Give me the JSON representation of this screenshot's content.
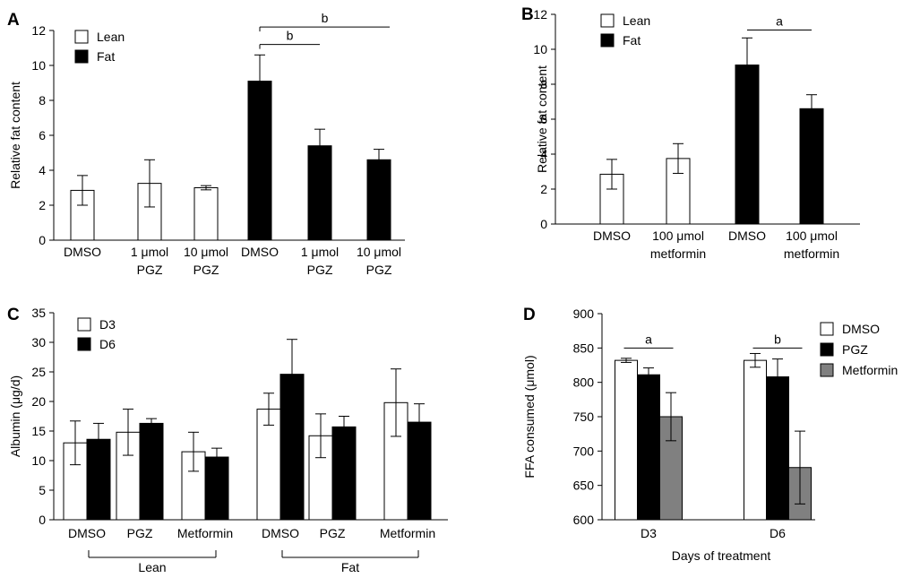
{
  "chart_data": [
    {
      "type": "bar",
      "panel": "A",
      "ylabel": "Relative fat content",
      "ylim": [
        0,
        12
      ],
      "yticks": [
        0,
        2,
        4,
        6,
        8,
        10,
        12
      ],
      "categories": [
        [
          "DMSO"
        ],
        [
          "1 μmol",
          "PGZ"
        ],
        [
          "10 μmol",
          "PGZ"
        ],
        [
          "DMSO"
        ],
        [
          "1 μmol",
          "PGZ"
        ],
        [
          "10 μmol",
          "PGZ"
        ]
      ],
      "bars": [
        {
          "value": 2.85,
          "error": 0.85,
          "series": "Lean"
        },
        {
          "value": 3.25,
          "error": 1.35,
          "series": "Lean"
        },
        {
          "value": 3.0,
          "error": 0.12,
          "series": "Lean"
        },
        {
          "value": 9.1,
          "error": 1.5,
          "series": "Fat"
        },
        {
          "value": 5.4,
          "error": 0.95,
          "series": "Fat"
        },
        {
          "value": 4.6,
          "error": 0.6,
          "series": "Fat"
        }
      ],
      "legend": [
        {
          "label": "Lean",
          "color": "#ffffff"
        },
        {
          "label": "Fat",
          "color": "#000000"
        }
      ],
      "significance": [
        {
          "label": "b",
          "from": 3,
          "to": 4,
          "y": 11.2
        },
        {
          "label": "b",
          "from": 3,
          "to": 5,
          "y": 12.2
        }
      ]
    },
    {
      "type": "bar",
      "panel": "B",
      "ylabel": "Relative fat content",
      "ylim": [
        0,
        12
      ],
      "yticks": [
        0,
        2,
        4,
        6,
        8,
        10,
        12
      ],
      "categories": [
        [
          "DMSO"
        ],
        [
          "100 μmol",
          "metformin"
        ],
        [
          "DMSO"
        ],
        [
          "100 μmol",
          "metformin"
        ]
      ],
      "bars": [
        {
          "value": 2.85,
          "error": 0.85,
          "series": "Lean"
        },
        {
          "value": 3.75,
          "error": 0.85,
          "series": "Lean"
        },
        {
          "value": 9.1,
          "error": 1.55,
          "series": "Fat"
        },
        {
          "value": 6.6,
          "error": 0.8,
          "series": "Fat"
        }
      ],
      "legend": [
        {
          "label": "Lean",
          "color": "#ffffff"
        },
        {
          "label": "Fat",
          "color": "#000000"
        }
      ],
      "significance": [
        {
          "label": "a",
          "from": 2,
          "to": 3,
          "y": 11.1
        }
      ]
    },
    {
      "type": "bar",
      "panel": "C",
      "ylabel": "Albumin (μg/d)",
      "ylim": [
        0,
        35
      ],
      "yticks": [
        0,
        5,
        10,
        15,
        20,
        25,
        30,
        35
      ],
      "categories": [
        "DMSO",
        "PGZ",
        "Metformin",
        "DMSO",
        "PGZ",
        "Metformin"
      ],
      "series": [
        {
          "name": "D3",
          "color": "#ffffff",
          "values": [
            13.0,
            14.8,
            11.5,
            18.7,
            14.2,
            19.8
          ],
          "errors": [
            3.7,
            3.9,
            3.3,
            2.7,
            3.7,
            5.7
          ]
        },
        {
          "name": "D6",
          "color": "#000000",
          "values": [
            13.6,
            16.3,
            10.6,
            24.6,
            15.7,
            16.5
          ],
          "errors": [
            2.7,
            0.8,
            1.5,
            5.9,
            1.8,
            3.1
          ]
        }
      ],
      "groups": [
        {
          "label": "Lean",
          "from": 0,
          "to": 2
        },
        {
          "label": "Fat",
          "from": 3,
          "to": 5
        }
      ]
    },
    {
      "type": "bar",
      "panel": "D",
      "ylabel": "FFA consumed (μmol)",
      "xlabel": "Days of treatment",
      "ylim": [
        600,
        900
      ],
      "yticks": [
        600,
        650,
        700,
        750,
        800,
        850,
        900
      ],
      "categories": [
        "D3",
        "D6"
      ],
      "series": [
        {
          "name": "DMSO",
          "color": "#ffffff",
          "values": [
            832,
            832
          ],
          "errors": [
            3,
            10
          ]
        },
        {
          "name": "PGZ",
          "color": "#000000",
          "values": [
            811,
            808
          ],
          "errors": [
            10,
            26
          ]
        },
        {
          "name": "Metformin",
          "color": "#808080",
          "values": [
            750,
            676
          ],
          "errors": [
            35,
            53
          ]
        }
      ],
      "significance": [
        {
          "label": "a",
          "category": 0,
          "y": 850
        },
        {
          "label": "b",
          "category": 1,
          "y": 850
        }
      ]
    }
  ]
}
